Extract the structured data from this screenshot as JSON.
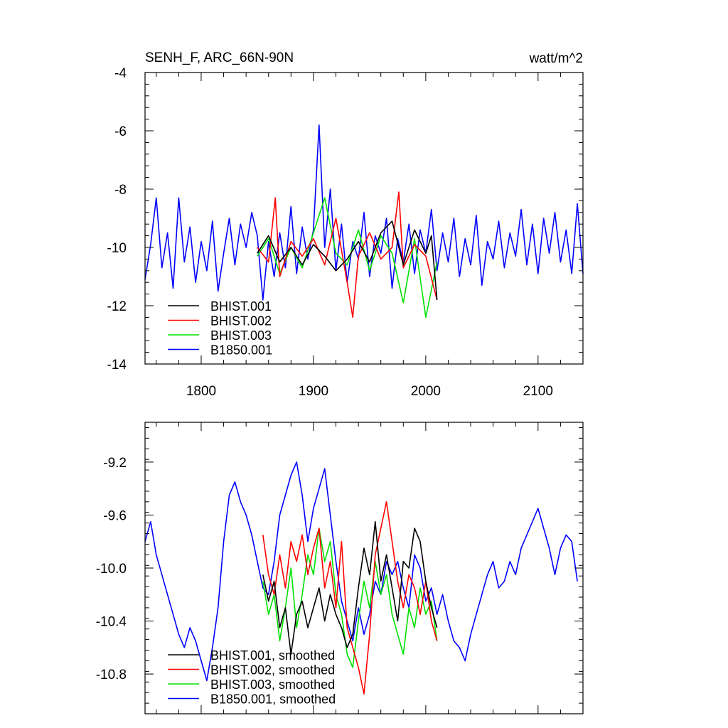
{
  "chart_data": [
    {
      "type": "line",
      "title": "SENH_F, ARC_66N-90N",
      "units": "watt/m^2",
      "xlim": [
        1750,
        2140
      ],
      "ylim": [
        -14,
        -4
      ],
      "x_ticks": [
        1800,
        1900,
        2000,
        2100
      ],
      "x_tick_labels": [
        "1800",
        "1900",
        "2000",
        "2100"
      ],
      "y_ticks": [
        -14,
        -12,
        -10,
        -8,
        -6,
        -4
      ],
      "y_tick_labels": [
        "-14",
        "-12",
        "-10",
        "-8",
        "-6",
        "-4"
      ],
      "legend_position": "bottom-left",
      "series": [
        {
          "name": "BHIST.001",
          "color": "#000000",
          "x": [
            1850,
            1860,
            1870,
            1880,
            1890,
            1900,
            1910,
            1920,
            1930,
            1940,
            1950,
            1960,
            1970,
            1980,
            1990,
            2000,
            2005,
            2010
          ],
          "values": [
            -10.2,
            -9.6,
            -10.5,
            -10.0,
            -10.6,
            -9.9,
            -10.3,
            -10.8,
            -10.4,
            -9.8,
            -10.5,
            -9.5,
            -9.1,
            -10.6,
            -9.4,
            -10.2,
            -9.6,
            -11.8
          ]
        },
        {
          "name": "BHIST.002",
          "color": "#ff0000",
          "x": [
            1850,
            1860,
            1866,
            1870,
            1880,
            1890,
            1900,
            1910,
            1920,
            1930,
            1935,
            1940,
            1950,
            1960,
            1970,
            1976,
            1980,
            1990,
            2000,
            2010
          ],
          "values": [
            -10.0,
            -10.5,
            -8.3,
            -11.0,
            -9.8,
            -10.3,
            -9.7,
            -10.6,
            -9.0,
            -11.2,
            -12.4,
            -10.3,
            -9.5,
            -10.4,
            -10.0,
            -8.1,
            -10.7,
            -9.9,
            -10.3,
            -11.8
          ]
        },
        {
          "name": "BHIST.003",
          "color": "#00e000",
          "x": [
            1850,
            1860,
            1870,
            1880,
            1890,
            1900,
            1910,
            1920,
            1930,
            1940,
            1950,
            1960,
            1970,
            1980,
            1990,
            2000,
            2010
          ],
          "values": [
            -10.3,
            -9.7,
            -10.9,
            -10.0,
            -10.7,
            -9.5,
            -8.3,
            -10.2,
            -10.6,
            -9.4,
            -10.8,
            -9.6,
            -10.2,
            -11.9,
            -9.7,
            -12.4,
            -10.5
          ]
        },
        {
          "name": "B1850.001",
          "color": "#0000ff",
          "x": [
            1750,
            1755,
            1760,
            1765,
            1770,
            1775,
            1780,
            1785,
            1790,
            1795,
            1800,
            1805,
            1810,
            1815,
            1820,
            1825,
            1830,
            1835,
            1840,
            1845,
            1850,
            1855,
            1860,
            1865,
            1870,
            1875,
            1880,
            1885,
            1890,
            1895,
            1900,
            1905,
            1910,
            1915,
            1920,
            1925,
            1930,
            1935,
            1940,
            1945,
            1950,
            1955,
            1960,
            1965,
            1970,
            1975,
            1980,
            1985,
            1990,
            1995,
            2000,
            2005,
            2010,
            2015,
            2020,
            2025,
            2030,
            2035,
            2040,
            2045,
            2050,
            2055,
            2060,
            2065,
            2070,
            2075,
            2080,
            2085,
            2090,
            2095,
            2100,
            2105,
            2110,
            2115,
            2120,
            2125,
            2130,
            2135,
            2140
          ],
          "values": [
            -11.1,
            -9.9,
            -8.3,
            -10.7,
            -9.5,
            -11.4,
            -8.3,
            -10.5,
            -9.3,
            -11.2,
            -9.8,
            -10.8,
            -9.1,
            -11.5,
            -10.2,
            -9.0,
            -10.6,
            -9.2,
            -10.0,
            -8.8,
            -9.6,
            -11.8,
            -9.8,
            -11.0,
            -9.5,
            -10.7,
            -8.6,
            -10.9,
            -9.3,
            -10.4,
            -9.4,
            -5.8,
            -10.0,
            -8.0,
            -10.8,
            -9.2,
            -11.2,
            -9.8,
            -10.4,
            -8.8,
            -11.0,
            -9.6,
            -10.2,
            -9.0,
            -11.4,
            -9.7,
            -10.5,
            -9.2,
            -10.9,
            -9.4,
            -10.2,
            -8.7,
            -10.8,
            -9.5,
            -10.5,
            -9.0,
            -11.0,
            -9.7,
            -10.6,
            -8.9,
            -11.3,
            -9.8,
            -10.4,
            -9.1,
            -10.7,
            -9.5,
            -10.3,
            -8.7,
            -10.6,
            -9.2,
            -10.9,
            -9.0,
            -10.2,
            -8.8,
            -10.5,
            -9.4,
            -10.9,
            -8.5,
            -10.9
          ]
        }
      ]
    },
    {
      "type": "line",
      "xlim": [
        1750,
        2140
      ],
      "ylim": [
        -11.1,
        -8.9
      ],
      "y_ticks": [
        -10.8,
        -10.4,
        -10.0,
        -9.6,
        -9.2
      ],
      "y_tick_labels": [
        "-10.8",
        "-10.4",
        "-10.0",
        "-9.6",
        "-9.2"
      ],
      "legend_position": "bottom-left",
      "series": [
        {
          "name": "BHIST.001, smoothed",
          "color": "#000000",
          "x": [
            1855,
            1860,
            1865,
            1870,
            1875,
            1880,
            1885,
            1890,
            1895,
            1900,
            1905,
            1910,
            1915,
            1920,
            1925,
            1930,
            1935,
            1940,
            1945,
            1950,
            1955,
            1960,
            1965,
            1970,
            1975,
            1980,
            1985,
            1990,
            1995,
            2000,
            2005,
            2010
          ],
          "values": [
            -10.05,
            -10.25,
            -10.1,
            -10.45,
            -10.3,
            -10.65,
            -10.35,
            -10.25,
            -10.45,
            -10.3,
            -10.15,
            -10.4,
            -10.2,
            -10.35,
            -10.45,
            -10.6,
            -10.5,
            -10.15,
            -9.85,
            -10.05,
            -9.65,
            -10.1,
            -9.9,
            -10.15,
            -10.4,
            -9.95,
            -10.0,
            -9.7,
            -9.8,
            -10.1,
            -10.3,
            -10.45
          ]
        },
        {
          "name": "BHIST.002, smoothed",
          "color": "#ff0000",
          "x": [
            1855,
            1860,
            1865,
            1870,
            1875,
            1880,
            1885,
            1890,
            1895,
            1900,
            1905,
            1910,
            1915,
            1920,
            1925,
            1930,
            1935,
            1940,
            1945,
            1950,
            1955,
            1960,
            1965,
            1970,
            1975,
            1980,
            1985,
            1990,
            1995,
            2000,
            2005,
            2010
          ],
          "values": [
            -9.75,
            -10.05,
            -10.2,
            -9.9,
            -10.15,
            -9.8,
            -9.95,
            -9.75,
            -10.05,
            -9.85,
            -9.7,
            -10.15,
            -9.95,
            -10.3,
            -9.8,
            -10.45,
            -10.6,
            -10.75,
            -10.95,
            -10.5,
            -9.9,
            -9.7,
            -9.5,
            -9.8,
            -10.1,
            -10.3,
            -10.05,
            -10.15,
            -10.35,
            -10.1,
            -10.4,
            -10.55
          ]
        },
        {
          "name": "BHIST.003, smoothed",
          "color": "#00e000",
          "x": [
            1855,
            1860,
            1865,
            1870,
            1875,
            1880,
            1885,
            1890,
            1895,
            1900,
            1905,
            1910,
            1915,
            1920,
            1925,
            1930,
            1935,
            1940,
            1945,
            1950,
            1955,
            1960,
            1965,
            1970,
            1975,
            1980,
            1985,
            1990,
            1995,
            2000,
            2005,
            2010
          ],
          "values": [
            -10.1,
            -10.35,
            -10.2,
            -10.55,
            -10.3,
            -10.0,
            -10.45,
            -10.2,
            -9.9,
            -10.05,
            -9.7,
            -9.95,
            -9.8,
            -10.2,
            -10.35,
            -10.65,
            -10.75,
            -10.4,
            -10.1,
            -10.3,
            -9.95,
            -10.2,
            -10.05,
            -10.35,
            -10.5,
            -10.65,
            -10.3,
            -10.45,
            -10.15,
            -10.35,
            -10.25,
            -10.55
          ]
        },
        {
          "name": "B1850.001, smoothed",
          "color": "#0000ff",
          "x": [
            1750,
            1755,
            1760,
            1765,
            1770,
            1775,
            1780,
            1785,
            1790,
            1795,
            1800,
            1805,
            1810,
            1815,
            1820,
            1825,
            1830,
            1835,
            1840,
            1845,
            1850,
            1855,
            1860,
            1865,
            1870,
            1875,
            1880,
            1885,
            1890,
            1895,
            1900,
            1905,
            1910,
            1915,
            1920,
            1925,
            1930,
            1935,
            1940,
            1945,
            1950,
            1955,
            1960,
            1965,
            1970,
            1975,
            1980,
            1985,
            1990,
            1995,
            2000,
            2005,
            2010,
            2015,
            2020,
            2025,
            2030,
            2035,
            2040,
            2045,
            2050,
            2055,
            2060,
            2065,
            2070,
            2075,
            2080,
            2085,
            2090,
            2095,
            2100,
            2105,
            2110,
            2115,
            2120,
            2125,
            2130,
            2135
          ],
          "values": [
            -9.8,
            -9.65,
            -9.9,
            -10.05,
            -10.2,
            -10.35,
            -10.5,
            -10.6,
            -10.45,
            -10.55,
            -10.7,
            -10.85,
            -10.6,
            -10.3,
            -9.8,
            -9.45,
            -9.35,
            -9.5,
            -9.6,
            -9.75,
            -9.95,
            -10.15,
            -10.2,
            -9.95,
            -9.6,
            -9.45,
            -9.3,
            -9.2,
            -9.45,
            -9.8,
            -9.55,
            -9.4,
            -9.25,
            -9.6,
            -9.95,
            -10.25,
            -10.4,
            -10.55,
            -10.3,
            -10.5,
            -10.35,
            -10.1,
            -10.2,
            -9.95,
            -10.05,
            -9.95,
            -10.15,
            -10.3,
            -9.9,
            -10.0,
            -10.25,
            -10.15,
            -10.35,
            -10.2,
            -10.4,
            -10.55,
            -10.6,
            -10.7,
            -10.5,
            -10.35,
            -10.2,
            -10.05,
            -9.95,
            -10.15,
            -10.1,
            -9.95,
            -10.05,
            -9.85,
            -9.75,
            -9.65,
            -9.55,
            -9.7,
            -9.85,
            -10.05,
            -9.85,
            -9.75,
            -9.8,
            -10.1
          ]
        }
      ]
    }
  ]
}
